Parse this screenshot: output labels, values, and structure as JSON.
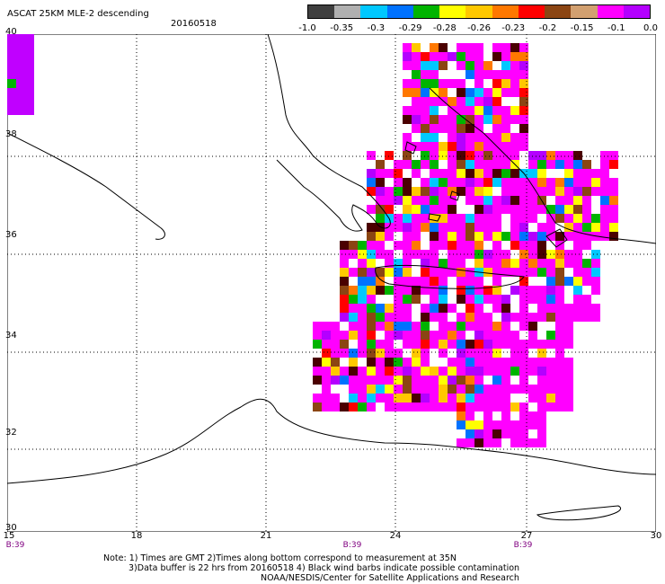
{
  "header": {
    "title": "ASCAT 25KM MLE-2 descending",
    "date": "20160518"
  },
  "colorbar": {
    "colors": [
      "#3f3f3f",
      "#b0b0b0",
      "#00c8ff",
      "#0072ff",
      "#00b400",
      "#ffff00",
      "#ffc800",
      "#ff7800",
      "#ff0000",
      "#8b4513",
      "#d2a070",
      "#ff00ff",
      "#b400ff"
    ],
    "labels": [
      "-1.0",
      "-0.35",
      "-0.3",
      "-0.29",
      "-0.28",
      "-0.26",
      "-0.23",
      "-0.2",
      "-0.15",
      "-0.1",
      "0.0"
    ]
  },
  "axes": {
    "lat_labels": [
      "40",
      "38",
      "36",
      "34",
      "32",
      "30"
    ],
    "lon_labels": [
      "15",
      "18",
      "21",
      "24",
      "27",
      "30"
    ],
    "time_labels": [
      "B:39",
      "B:39",
      "B:39"
    ]
  },
  "notes": {
    "line1": "Note: 1) Times are GMT 2)Times along bottom correspond to measurement at 35N",
    "line2": "3)Data buffer is 22 hrs from 20160518 4) Black wind barbs indicate possible contamination",
    "line3": "NOAA/NESDIS/Center for Satellite Applications and Research"
  },
  "map": {
    "lon_range": [
      15,
      30
    ],
    "lat_range": [
      30,
      40
    ]
  }
}
